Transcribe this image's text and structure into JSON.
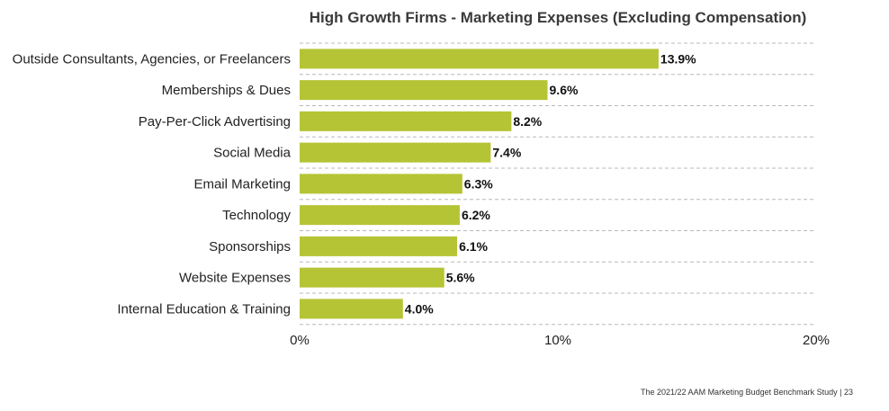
{
  "chart_data": {
    "type": "bar",
    "orientation": "horizontal",
    "title": "High Growth Firms - Marketing Expenses (Excluding Compensation)",
    "categories": [
      "Outside Consultants, Agencies, or Freelancers",
      "Memberships & Dues",
      "Pay-Per-Click Advertising",
      "Social Media",
      "Email Marketing",
      "Technology",
      "Sponsorships",
      "Website Expenses",
      "Internal Education & Training"
    ],
    "values": [
      13.9,
      9.6,
      8.2,
      7.4,
      6.3,
      6.2,
      6.1,
      5.6,
      4.0
    ],
    "value_labels": [
      "13.9%",
      "9.6%",
      "8.2%",
      "7.4%",
      "6.3%",
      "6.2%",
      "6.1%",
      "5.6%",
      "4.0%"
    ],
    "xlim": [
      0,
      20
    ],
    "x_ticks": [
      0,
      10,
      20
    ],
    "x_tick_labels": [
      "0%",
      "10%",
      "20%"
    ],
    "grid": "dashed horizontal separators",
    "bar_color": "#b5c435"
  },
  "footer": {
    "text": "The 2021/22 AAM Marketing Budget Benchmark Study  |  23"
  }
}
